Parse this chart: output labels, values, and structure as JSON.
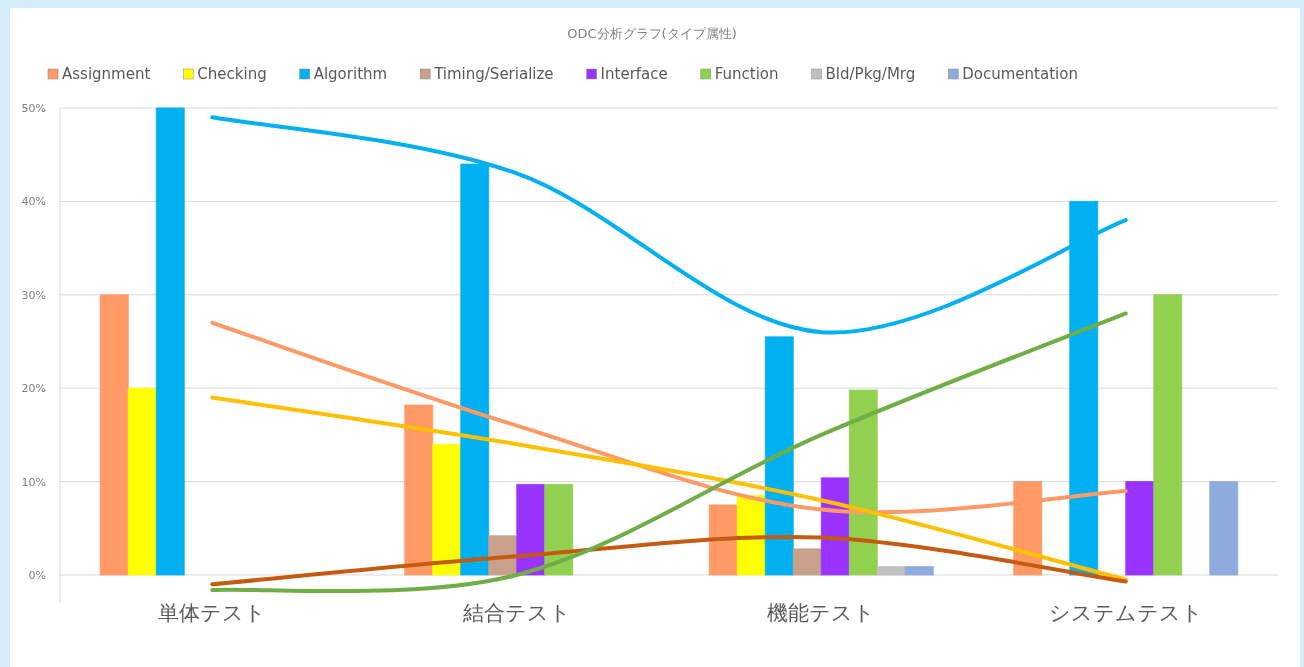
{
  "chart_data": {
    "type": "bar",
    "title": "ODC分析グラフ(タイプ属性)",
    "categories": [
      "単体テスト",
      "結合テスト",
      "機能テスト",
      "システムテスト"
    ],
    "ylim": [
      -3,
      50
    ],
    "yticks": [
      {
        "value": 0,
        "label": "0%"
      },
      {
        "value": 10,
        "label": "10%"
      },
      {
        "value": 20,
        "label": "20%"
      },
      {
        "value": 30,
        "label": "30%"
      },
      {
        "value": 40,
        "label": "40%"
      },
      {
        "value": 50,
        "label": "50%"
      }
    ],
    "grid": "y",
    "legend": "top",
    "series": [
      {
        "name": "Assignment",
        "color": "#ff9966",
        "values": [
          30,
          18.2,
          7.5,
          10
        ]
      },
      {
        "name": "Checking",
        "color": "#ffff00",
        "values": [
          20,
          14,
          8.5,
          0
        ]
      },
      {
        "name": "Algorithm",
        "color": "#00b0f0",
        "values": [
          50,
          44,
          25.5,
          40
        ]
      },
      {
        "name": "Timing/Serialize",
        "color": "#c9a08a",
        "values": [
          0,
          4.2,
          2.8,
          0
        ]
      },
      {
        "name": "Interface",
        "color": "#9933ff",
        "values": [
          0,
          9.7,
          10.4,
          10
        ]
      },
      {
        "name": "Function",
        "color": "#92d050",
        "values": [
          0,
          9.7,
          19.8,
          30
        ]
      },
      {
        "name": "Bld/Pkg/Mrg",
        "color": "#c0c0c0",
        "values": [
          0,
          0,
          0.9,
          0
        ]
      },
      {
        "name": "Documentation",
        "color": "#8faadc",
        "values": [
          0,
          0,
          0.9,
          10
        ]
      },
      {
        "type": "line",
        "color": "#ff9966",
        "x": [
          "単体テスト",
          "結合テスト",
          "機能テスト",
          "システムテスト"
        ],
        "values": [
          27,
          16,
          7,
          9
        ]
      },
      {
        "type": "line",
        "color": "#ffc000",
        "x": [
          "単体テスト",
          "結合テスト",
          "機能テスト",
          "システムテスト"
        ],
        "values": [
          19,
          14,
          8,
          -0.5
        ]
      },
      {
        "type": "line",
        "color": "#00b0f0",
        "x": [
          "単体テスト",
          "結合テスト",
          "機能テスト",
          "システムテスト"
        ],
        "values": [
          49,
          43,
          26,
          38
        ]
      },
      {
        "type": "line",
        "color": "#c55a11",
        "x": [
          "単体テスト",
          "結合テスト",
          "機能テスト",
          "システムテスト"
        ],
        "values": [
          -1,
          2,
          4,
          -0.7
        ]
      },
      {
        "type": "line",
        "color": "#70ad47",
        "x": [
          "単体テスト",
          "結合テスト",
          "機能テスト",
          "システムテスト"
        ],
        "values": [
          -1.6,
          0,
          15,
          28
        ]
      }
    ]
  }
}
